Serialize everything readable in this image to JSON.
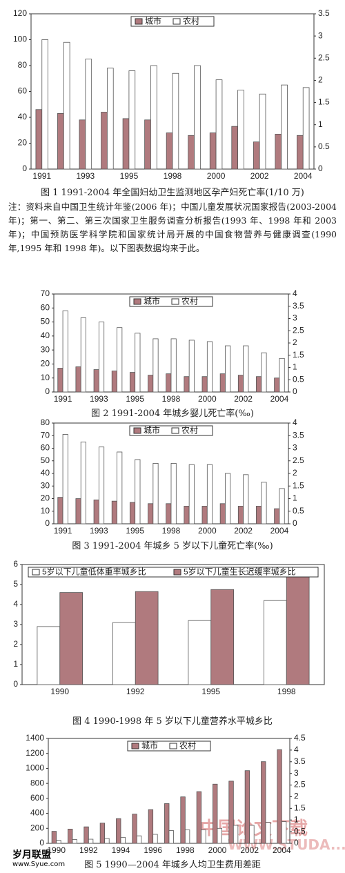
{
  "chart_data": [
    {
      "type": "bar",
      "caption": "图 1  1991-2004 年全国妇幼卫生监测地区孕产妇死亡率(1/10 万)",
      "categories": [
        "1991",
        null,
        "1993",
        null,
        "1995",
        null,
        "1998",
        null,
        "2000",
        null,
        "2002",
        null,
        "2004"
      ],
      "series": [
        {
          "name": "城市",
          "color": "#b07a7e",
          "values": [
            46,
            43,
            38,
            44,
            39,
            38,
            28,
            26,
            28,
            33,
            21,
            27,
            26
          ]
        },
        {
          "name": "农村",
          "color": "#ffffff",
          "values": [
            100,
            98,
            85,
            78,
            76,
            80,
            74,
            80,
            69,
            61,
            58,
            65,
            63
          ]
        }
      ],
      "ylim": [
        0,
        120
      ],
      "yticks": [
        0,
        20,
        40,
        60,
        80,
        100,
        120
      ],
      "y2lim": [
        0,
        3.5
      ],
      "y2ticks": [
        0,
        0.5,
        1,
        1.5,
        2,
        2.5,
        3,
        3.5
      ],
      "legend": "top"
    },
    {
      "type": "bar",
      "caption": "图 2  1991-2004 年城乡婴儿死亡率(‰)",
      "categories": [
        "1991",
        null,
        "1993",
        null,
        "1995",
        null,
        "1998",
        null,
        "2000",
        null,
        "2002",
        null,
        "2004"
      ],
      "series": [
        {
          "name": "城市",
          "color": "#b07a7e",
          "values": [
            17,
            18,
            16,
            15,
            14,
            12,
            13,
            11,
            11,
            13,
            12,
            11,
            10
          ]
        },
        {
          "name": "农村",
          "color": "#ffffff",
          "values": [
            58,
            53,
            50,
            46,
            42,
            38,
            38,
            37,
            36,
            33,
            33,
            28,
            24
          ]
        }
      ],
      "ylim": [
        0,
        70
      ],
      "yticks": [
        0,
        10,
        20,
        30,
        40,
        50,
        60,
        70
      ],
      "y2lim": [
        0,
        4
      ],
      "y2ticks": [
        0,
        0.5,
        1,
        1.5,
        2,
        2.5,
        3,
        3.5,
        4
      ],
      "legend": "top"
    },
    {
      "type": "bar",
      "caption": "图 3  1991-2004 年城乡 5 岁以下儿童死亡率(‰)",
      "categories": [
        "1991",
        null,
        "1993",
        null,
        "1995",
        null,
        "1998",
        null,
        "2000",
        null,
        "2002",
        null,
        "2004"
      ],
      "series": [
        {
          "name": "城市",
          "color": "#b07a7e",
          "values": [
            21,
            20,
            19,
            18,
            17,
            16,
            16,
            14,
            14,
            16,
            14,
            14,
            12
          ]
        },
        {
          "name": "农村",
          "color": "#ffffff",
          "values": [
            71,
            65,
            61,
            57,
            51,
            48,
            48,
            47,
            47,
            40,
            39,
            33,
            28
          ]
        }
      ],
      "ylim": [
        0,
        80
      ],
      "yticks": [
        0,
        10,
        20,
        30,
        40,
        50,
        60,
        70,
        80
      ],
      "y2lim": [
        0,
        4
      ],
      "y2ticks": [
        0,
        0.5,
        1,
        1.5,
        2,
        2.5,
        3,
        3.5,
        4
      ],
      "legend": "top"
    },
    {
      "type": "bar",
      "caption": "图 4  1990-1998 年 5 岁以下儿童营养水平城乡比",
      "categories": [
        "1990",
        "1992",
        "1995",
        "1998"
      ],
      "series": [
        {
          "name": "5岁以下儿童低体重率城乡比",
          "color": "#ffffff",
          "values": [
            2.9,
            3.1,
            3.2,
            4.2
          ]
        },
        {
          "name": "5岁以下儿童生长迟缓率城乡比",
          "color": "#b07a7e",
          "values": [
            4.6,
            4.65,
            4.75,
            5.45
          ]
        }
      ],
      "ylim": [
        0,
        6
      ],
      "yticks": [
        0,
        1,
        2,
        3,
        4,
        5,
        6
      ],
      "legend": "top"
    },
    {
      "type": "bar",
      "caption": "图 5 1990—2004 年城乡人均卫生费用差距",
      "categories": [
        "1990",
        null,
        "1992",
        null,
        "1994",
        null,
        "1996",
        null,
        "1998",
        null,
        "2000",
        null,
        "2002",
        null,
        "2004"
      ],
      "series": [
        {
          "name": "城市",
          "color": "#b07a7e",
          "values": [
            160,
            190,
            220,
            270,
            330,
            390,
            450,
            530,
            620,
            690,
            790,
            830,
            970,
            1090,
            1250
          ]
        },
        {
          "name": "农村",
          "color": "#ffffff",
          "values": [
            40,
            50,
            55,
            65,
            80,
            100,
            120,
            170,
            180,
            180,
            200,
            240,
            240,
            280,
            290
          ]
        }
      ],
      "ylim": [
        0,
        1400
      ],
      "yticks": [
        0,
        200,
        400,
        600,
        800,
        1000,
        1200,
        1400
      ],
      "y2lim": [
        0,
        4.5
      ],
      "y2ticks": [
        0,
        0.5,
        1,
        1.5,
        2,
        2.5,
        3,
        3.5,
        4,
        4.5
      ],
      "legend": "top"
    }
  ],
  "note": "注：资料来自中国卫生统计年鉴(2006 年)；中国儿童发展状况国家报告(2003-2004 年)；第一、第二、第三次国家卫生服务调查分析报告(1993 年、1998 年和 2003 年)；中国预防医学科学院和国家统计局开展的中国食物营养与健康调查(1990 年,1995 年和 1998 年)。以下图表数据均来于此。",
  "watermarks": [
    "中国论文下载",
    "WWW.STUDA...",
    "岁月联盟",
    "www.Syue.com"
  ]
}
